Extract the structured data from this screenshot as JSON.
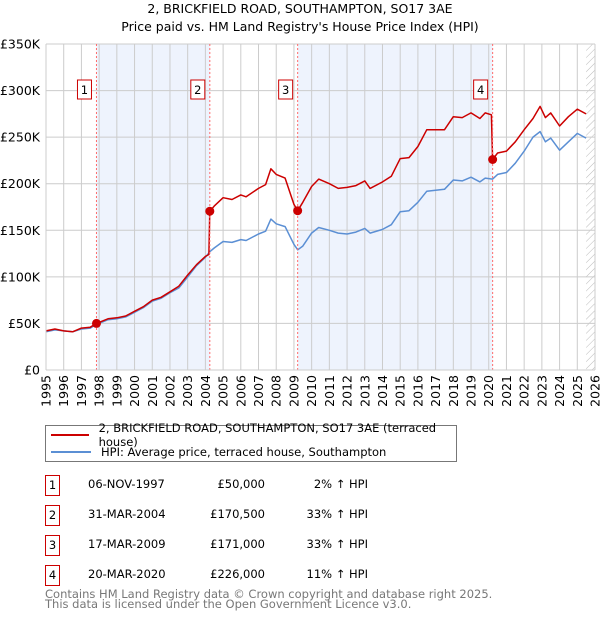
{
  "chart_data": {
    "type": "line",
    "title": "2, BRICKFIELD ROAD, SOUTHAMPTON, SO17 3AE",
    "subtitle": "Price paid vs. HM Land Registry's House Price Index (HPI)",
    "xlim": [
      1995,
      2026
    ],
    "ylim": [
      0,
      350000
    ],
    "yticks": [
      0,
      50000,
      100000,
      150000,
      200000,
      250000,
      300000,
      350000
    ],
    "ytick_labels": [
      "£0",
      "£50K",
      "£100K",
      "£150K",
      "£200K",
      "£250K",
      "£300K",
      "£350K"
    ],
    "xticks": [
      1995,
      1996,
      1997,
      1998,
      1999,
      2000,
      2001,
      2002,
      2003,
      2004,
      2005,
      2006,
      2007,
      2008,
      2009,
      2010,
      2011,
      2012,
      2013,
      2014,
      2015,
      2016,
      2017,
      2018,
      2019,
      2020,
      2021,
      2022,
      2023,
      2024,
      2025,
      2026
    ],
    "grid": true,
    "colors": {
      "price": "#cc0000",
      "hpi": "#5b8fd4",
      "shade": "#eef3fd",
      "marker_line": "#ff6b6b"
    },
    "shaded_ranges": [
      [
        1997.85,
        2004.25
      ],
      [
        2009.21,
        2020.22
      ]
    ],
    "forecast_from": 2025.5,
    "series": [
      {
        "name": "2, BRICKFIELD ROAD, SOUTHAMPTON, SO17 3AE (terraced house)",
        "key": "price",
        "x": [
          1995,
          1995.5,
          1996,
          1996.5,
          1997,
          1997.5,
          1997.85,
          1998.5,
          1999,
          1999.5,
          2000,
          2000.5,
          2001,
          2001.5,
          2002,
          2002.5,
          2003,
          2003.5,
          2004,
          2004.2,
          2004.25,
          2004.5,
          2005,
          2005.5,
          2006,
          2006.3,
          2007,
          2007.4,
          2007.7,
          2008,
          2008.5,
          2009,
          2009.21,
          2009.5,
          2010,
          2010.4,
          2011,
          2011.5,
          2012,
          2012.5,
          2013,
          2013.3,
          2014,
          2014.5,
          2015,
          2015.5,
          2016,
          2016.5,
          2017,
          2017.5,
          2018,
          2018.5,
          2019,
          2019.5,
          2019.8,
          2020.15,
          2020.22,
          2020.5,
          2021,
          2021.5,
          2022,
          2022.5,
          2022.9,
          2023.2,
          2023.5,
          2024,
          2024.5,
          2025,
          2025.5
        ],
        "y": [
          42000,
          44000,
          42000,
          41000,
          45000,
          46000,
          50000,
          55000,
          56000,
          58000,
          63000,
          68000,
          75000,
          78000,
          84000,
          90000,
          102000,
          113000,
          122000,
          124000,
          170500,
          176000,
          185000,
          183000,
          188000,
          186000,
          195000,
          199000,
          216000,
          210000,
          206000,
          178000,
          171000,
          180000,
          197000,
          205000,
          200000,
          195000,
          196000,
          198000,
          203000,
          195000,
          202000,
          208000,
          227000,
          228000,
          240000,
          258000,
          258000,
          258000,
          272000,
          271000,
          276000,
          270000,
          276000,
          274000,
          226000,
          233000,
          235000,
          245000,
          258000,
          270000,
          283000,
          271000,
          276000,
          262000,
          272000,
          280000,
          275000
        ]
      },
      {
        "name": "HPI: Average price, terraced house, Southampton",
        "key": "hpi",
        "x": [
          1995,
          1995.5,
          1996,
          1996.5,
          1997,
          1997.5,
          1997.85,
          1998.5,
          1999,
          1999.5,
          2000,
          2000.5,
          2001,
          2001.5,
          2002,
          2002.5,
          2003,
          2003.5,
          2004,
          2004.25,
          2004.5,
          2005,
          2005.5,
          2006,
          2006.3,
          2007,
          2007.4,
          2007.7,
          2008,
          2008.5,
          2009,
          2009.21,
          2009.5,
          2010,
          2010.4,
          2011,
          2011.5,
          2012,
          2012.5,
          2013,
          2013.3,
          2014,
          2014.5,
          2015,
          2015.5,
          2016,
          2016.5,
          2017,
          2017.5,
          2018,
          2018.5,
          2019,
          2019.5,
          2019.8,
          2020.22,
          2020.5,
          2021,
          2021.5,
          2022,
          2022.5,
          2022.9,
          2023.2,
          2023.5,
          2024,
          2024.5,
          2025,
          2025.5
        ],
        "y": [
          41000,
          43000,
          42000,
          41000,
          44000,
          45000,
          49000,
          54000,
          55000,
          57000,
          62000,
          67000,
          74000,
          77000,
          83000,
          88000,
          100000,
          112000,
          121000,
          127000,
          131000,
          138000,
          137000,
          140000,
          139000,
          146000,
          149000,
          162000,
          157000,
          154000,
          135000,
          129000,
          133000,
          147000,
          153000,
          150000,
          147000,
          146000,
          148000,
          152000,
          147000,
          151000,
          156000,
          170000,
          171000,
          180000,
          192000,
          193000,
          194000,
          204000,
          203000,
          207000,
          202000,
          206000,
          205000,
          210000,
          212000,
          222000,
          235000,
          250000,
          256000,
          245000,
          249000,
          236000,
          245000,
          254000,
          249000
        ]
      }
    ],
    "sales": [
      {
        "n": "1",
        "x": 1997.85,
        "y": 50000
      },
      {
        "n": "2",
        "x": 2004.25,
        "y": 170500
      },
      {
        "n": "3",
        "x": 2009.21,
        "y": 171000
      },
      {
        "n": "4",
        "x": 2020.22,
        "y": 226000
      }
    ]
  },
  "legend": {
    "price_label": "2, BRICKFIELD ROAD, SOUTHAMPTON, SO17 3AE (terraced house)",
    "hpi_label": "HPI: Average price, terraced house, Southampton"
  },
  "table": [
    {
      "n": "1",
      "date": "06-NOV-1997",
      "price": "£50,000",
      "pct": "2% ↑ HPI"
    },
    {
      "n": "2",
      "date": "31-MAR-2004",
      "price": "£170,500",
      "pct": "33% ↑ HPI"
    },
    {
      "n": "3",
      "date": "17-MAR-2009",
      "price": "£171,000",
      "pct": "33% ↑ HPI"
    },
    {
      "n": "4",
      "date": "20-MAR-2020",
      "price": "£226,000",
      "pct": "11% ↑ HPI"
    }
  ],
  "footer": {
    "line1": "Contains HM Land Registry data © Crown copyright and database right 2025.",
    "line2": "This data is licensed under the Open Government Licence v3.0."
  }
}
